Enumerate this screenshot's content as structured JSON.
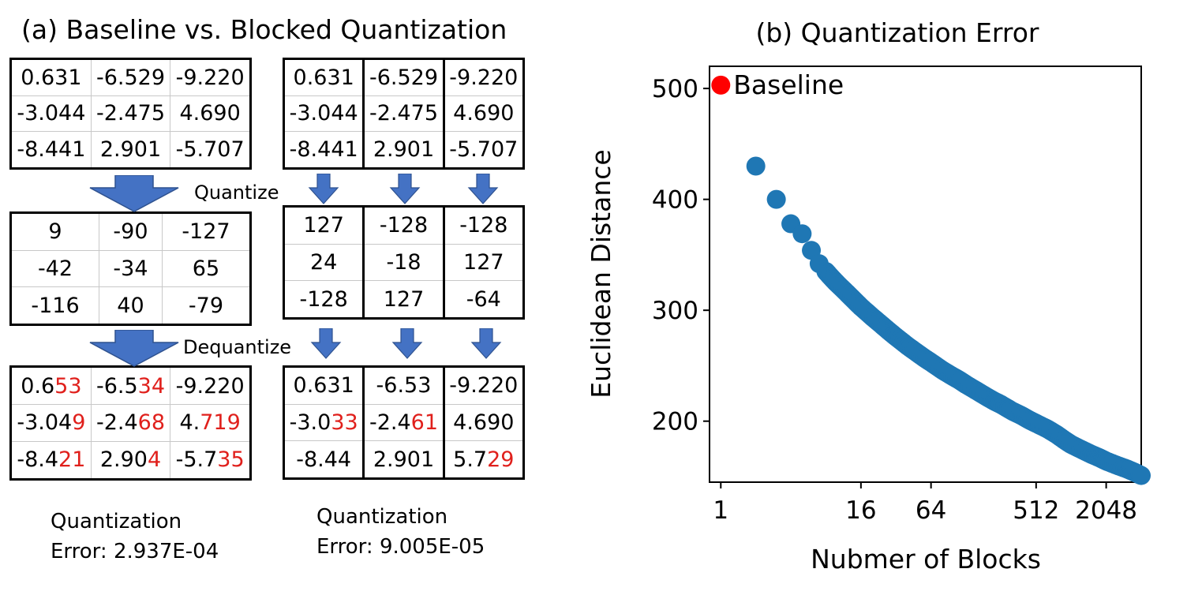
{
  "panel_a": {
    "title": "(a) Baseline vs. Blocked Quantization",
    "quantize_label": "Quantize",
    "dequantize_label": "Dequantize",
    "baseline": {
      "original": [
        [
          "0.631",
          "-6.529",
          "-9.220"
        ],
        [
          "-3.044",
          "-2.475",
          "4.690"
        ],
        [
          "-8.441",
          "2.901",
          "-5.707"
        ]
      ],
      "quantized": [
        [
          "9",
          "-90",
          "-127"
        ],
        [
          "-42",
          "-34",
          "65"
        ],
        [
          "-116",
          "40",
          "-79"
        ]
      ],
      "dequantized": [
        [
          {
            "p": "0.6",
            "r": "53"
          },
          {
            "p": "-6.5",
            "r": "34"
          },
          {
            "p": "-9.220",
            "r": ""
          }
        ],
        [
          {
            "p": "-3.04",
            "r": "9"
          },
          {
            "p": "-2.4",
            "r": "68"
          },
          {
            "p": "4.",
            "r": "719"
          }
        ],
        [
          {
            "p": "-8.4",
            "r": "21"
          },
          {
            "p": "2.90",
            "r": "4"
          },
          {
            "p": "-5.7",
            "r": "35"
          }
        ]
      ],
      "error_line1": "Quantization",
      "error_line2": "Error: 2.937E-04"
    },
    "blocked": {
      "original": [
        [
          "0.631",
          "-6.529",
          "-9.220"
        ],
        [
          "-3.044",
          "-2.475",
          "4.690"
        ],
        [
          "-8.441",
          "2.901",
          "-5.707"
        ]
      ],
      "quantized": [
        [
          "127",
          "-128",
          "-128"
        ],
        [
          "24",
          "-18",
          "127"
        ],
        [
          "-128",
          "127",
          "-64"
        ]
      ],
      "dequantized": [
        [
          {
            "p": "0.631",
            "r": ""
          },
          {
            "p": "-6.53",
            "r": ""
          },
          {
            "p": "-9.220",
            "r": ""
          }
        ],
        [
          {
            "p": "-3.0",
            "r": "33"
          },
          {
            "p": "-2.4",
            "r": "61"
          },
          {
            "p": "4.690",
            "r": ""
          }
        ],
        [
          {
            "p": "-8.44",
            "r": ""
          },
          {
            "p": "2.901",
            "r": ""
          },
          {
            "p": "5.7",
            "r": "29"
          }
        ]
      ],
      "error_line1": "Quantization",
      "error_line2": "Error: 9.005E-05"
    }
  },
  "chart_data": {
    "type": "scatter",
    "title": "(b) Quantization Error",
    "xlabel": "Nubmer of Blocks",
    "ylabel": "Euclidean Distance",
    "x_scale": "log2",
    "x_ticks": [
      1,
      16,
      64,
      512,
      2048
    ],
    "x_tick_labels": [
      "1",
      "16",
      "64",
      "512",
      "2048"
    ],
    "y_ticks": [
      200,
      300,
      400,
      500
    ],
    "xlim": [
      0.8,
      4096
    ],
    "ylim": [
      145,
      520
    ],
    "baseline": {
      "name": "Baseline",
      "x": 1,
      "y": 503,
      "color": "#ff0000"
    },
    "series_color": "#1f77b4",
    "points": [
      {
        "x": 2,
        "y": 430
      },
      {
        "x": 3,
        "y": 400
      },
      {
        "x": 4,
        "y": 378
      },
      {
        "x": 5,
        "y": 369
      },
      {
        "x": 6,
        "y": 354
      },
      {
        "x": 7,
        "y": 342
      },
      {
        "x": 8,
        "y": 335
      },
      {
        "x": 9,
        "y": 329
      },
      {
        "x": 10,
        "y": 324
      },
      {
        "x": 12,
        "y": 316
      },
      {
        "x": 14,
        "y": 309
      },
      {
        "x": 16,
        "y": 303
      },
      {
        "x": 20,
        "y": 294
      },
      {
        "x": 24,
        "y": 287
      },
      {
        "x": 28,
        "y": 281
      },
      {
        "x": 32,
        "y": 276
      },
      {
        "x": 40,
        "y": 268
      },
      {
        "x": 48,
        "y": 262
      },
      {
        "x": 56,
        "y": 257
      },
      {
        "x": 64,
        "y": 253
      },
      {
        "x": 80,
        "y": 246
      },
      {
        "x": 96,
        "y": 241
      },
      {
        "x": 112,
        "y": 237
      },
      {
        "x": 128,
        "y": 233
      },
      {
        "x": 160,
        "y": 227
      },
      {
        "x": 192,
        "y": 222
      },
      {
        "x": 224,
        "y": 218
      },
      {
        "x": 256,
        "y": 215
      },
      {
        "x": 320,
        "y": 209
      },
      {
        "x": 384,
        "y": 205
      },
      {
        "x": 448,
        "y": 201
      },
      {
        "x": 512,
        "y": 198
      },
      {
        "x": 640,
        "y": 193
      },
      {
        "x": 768,
        "y": 188
      },
      {
        "x": 896,
        "y": 183
      },
      {
        "x": 1024,
        "y": 179
      },
      {
        "x": 1280,
        "y": 174
      },
      {
        "x": 1536,
        "y": 170
      },
      {
        "x": 1792,
        "y": 167
      },
      {
        "x": 2048,
        "y": 164
      },
      {
        "x": 2560,
        "y": 160
      },
      {
        "x": 3072,
        "y": 157
      },
      {
        "x": 3584,
        "y": 154
      },
      {
        "x": 4096,
        "y": 151
      }
    ]
  }
}
